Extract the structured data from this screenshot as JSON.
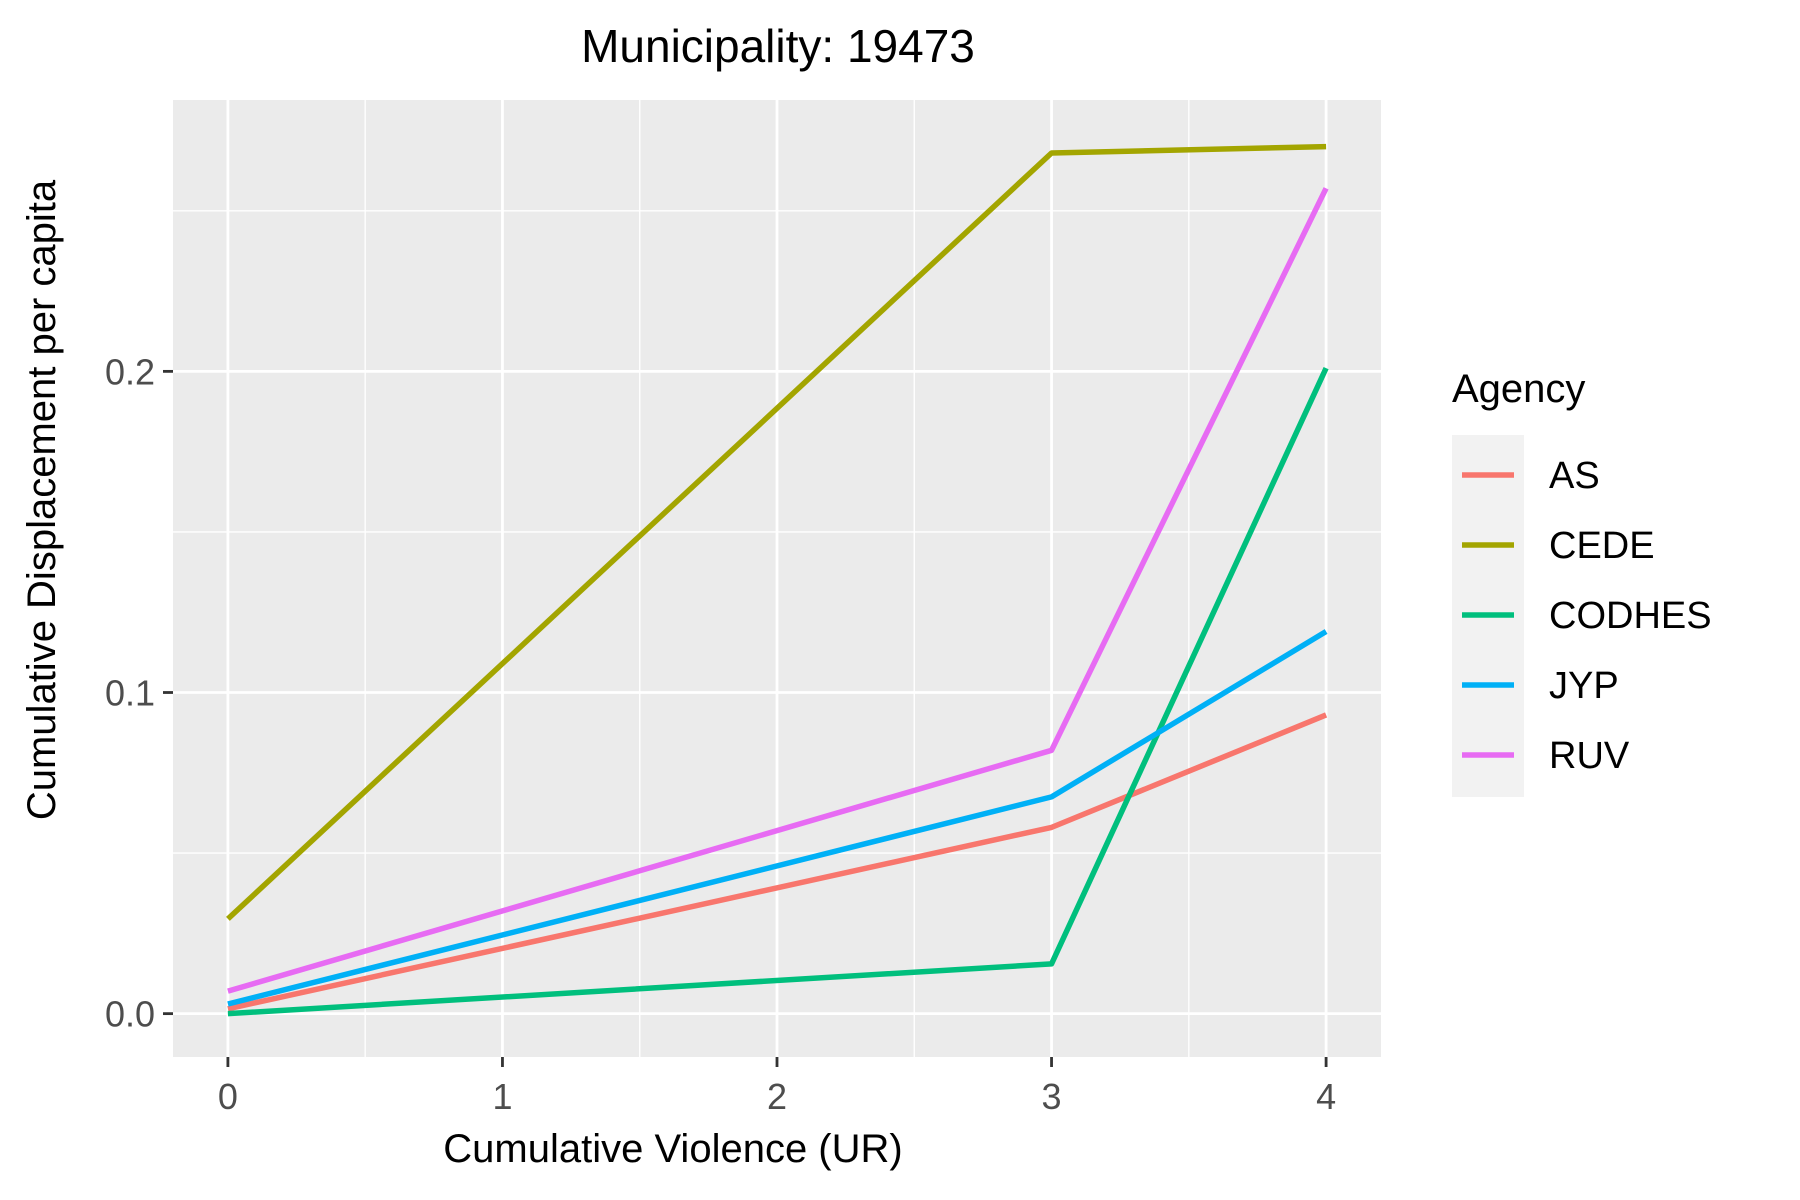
{
  "chart_data": {
    "type": "line",
    "title": "Municipality: 19473",
    "xlabel": "Cumulative Violence (UR)",
    "ylabel": "Cumulative Displacement per capita",
    "xlim": [
      -0.2,
      4.2
    ],
    "ylim": [
      -0.0135,
      0.2845
    ],
    "x_ticks": [
      0,
      1,
      2,
      3,
      4
    ],
    "x_tick_labels": [
      "0",
      "1",
      "2",
      "3",
      "4"
    ],
    "y_ticks": [
      0.0,
      0.1,
      0.2
    ],
    "y_tick_labels": [
      "0.0",
      "0.1",
      "0.2"
    ],
    "y_minor": [
      0.05,
      0.15,
      0.25
    ],
    "x_minor": [
      0.5,
      1.5,
      2.5,
      3.5
    ],
    "grid": true,
    "legend_title": "Agency",
    "legend_position": "right",
    "x": [
      0,
      3,
      4
    ],
    "series": [
      {
        "name": "AS",
        "color": "#F8766D",
        "values": [
          0.0015,
          0.058,
          0.093
        ]
      },
      {
        "name": "CEDE",
        "color": "#A3A500",
        "values": [
          0.0295,
          0.268,
          0.27
        ]
      },
      {
        "name": "CODHES",
        "color": "#00BF7D",
        "values": [
          0.0,
          0.0155,
          0.201
        ]
      },
      {
        "name": "JYP",
        "color": "#00B0F6",
        "values": [
          0.003,
          0.0675,
          0.119
        ]
      },
      {
        "name": "RUV",
        "color": "#E76BF3",
        "values": [
          0.007,
          0.082,
          0.257
        ]
      }
    ]
  }
}
